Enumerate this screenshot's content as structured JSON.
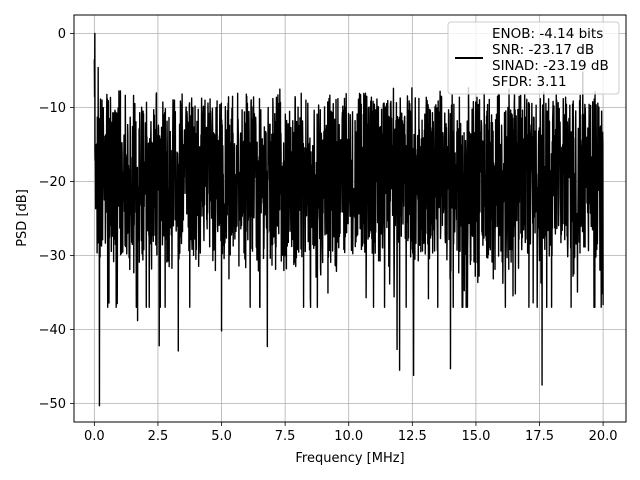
{
  "chart_data": {
    "type": "line",
    "title": "",
    "xlabel": "Frequency [MHz]",
    "ylabel": "PSD [dB]",
    "xlim": [
      -0.8,
      20.9
    ],
    "ylim": [
      -52.5,
      2.5
    ],
    "xticks": [
      0.0,
      2.5,
      5.0,
      7.5,
      10.0,
      12.5,
      15.0,
      17.5,
      20.0
    ],
    "xtick_labels": [
      "0.0",
      "2.5",
      "5.0",
      "7.5",
      "10.0",
      "12.5",
      "15.0",
      "17.5",
      "20.0"
    ],
    "yticks": [
      0,
      -10,
      -20,
      -30,
      -40,
      -50
    ],
    "ytick_labels": [
      "0",
      "−10",
      "−20",
      "−30",
      "−40",
      "−50"
    ],
    "grid": true,
    "legend_position": "upper-right",
    "legend_entries": [
      "ENOB: -4.14 bits",
      "SNR: -23.17 dB",
      "SINAD: -23.19 dB",
      "SFDR: 3.11"
    ],
    "series": [
      {
        "color": "#000000",
        "x_start": 0.0,
        "x_end": 20.0,
        "features": [
          {
            "x": 0.0,
            "y": -3.5
          },
          {
            "x": 0.02,
            "y": 0.0
          },
          {
            "x": 0.08,
            "y": -15.0
          },
          {
            "x": 0.15,
            "y": -4.6
          },
          {
            "x": 0.2,
            "y": -50.3
          },
          {
            "x": 0.3,
            "y": -9.0
          },
          {
            "x": 0.9,
            "y": -36.5
          },
          {
            "x": 1.7,
            "y": -38.8
          },
          {
            "x": 2.55,
            "y": -42.2
          },
          {
            "x": 3.3,
            "y": -42.9
          },
          {
            "x": 5.0,
            "y": -40.2
          },
          {
            "x": 6.8,
            "y": -42.3
          },
          {
            "x": 11.9,
            "y": -42.7
          },
          {
            "x": 12.0,
            "y": -45.5
          },
          {
            "x": 12.55,
            "y": -46.2
          },
          {
            "x": 14.0,
            "y": -45.3
          },
          {
            "x": 17.6,
            "y": -47.5
          },
          {
            "x": 16.3,
            "y": -7.5
          },
          {
            "x": 19.2,
            "y": -5.2
          },
          {
            "x": 20.0,
            "y": -36.7
          }
        ]
      }
    ]
  }
}
